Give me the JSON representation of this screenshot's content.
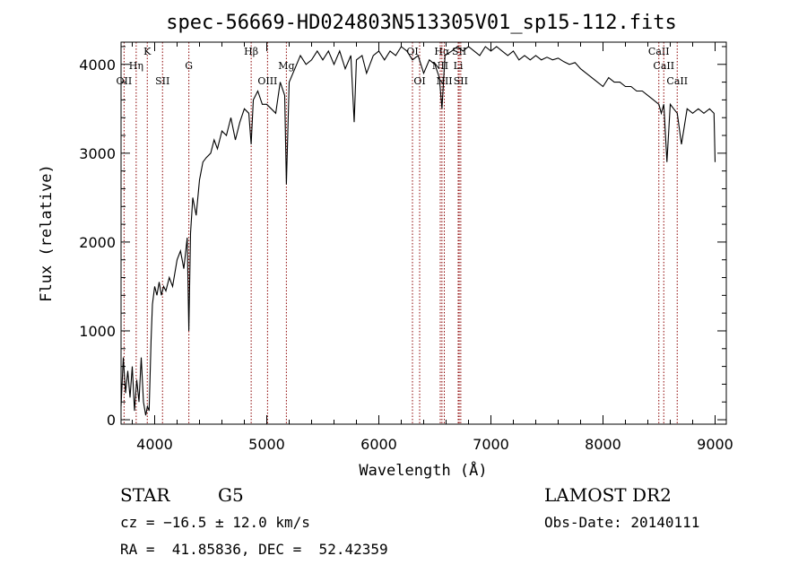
{
  "chart_data": {
    "type": "line",
    "title": "spec-56669-HD024803N513305V01_sp15-112.fits",
    "xlabel": "Wavelength (Å)",
    "ylabel": "Flux (relative)",
    "xlim": [
      3700,
      9100
    ],
    "ylim": [
      -50,
      4250
    ],
    "xticks": [
      4000,
      5000,
      6000,
      7000,
      8000,
      9000
    ],
    "yticks": [
      0,
      1000,
      2000,
      3000,
      4000
    ],
    "grid": false,
    "series": [
      {
        "color": "#000000",
        "x": [
          3700,
          3720,
          3740,
          3760,
          3780,
          3800,
          3820,
          3840,
          3860,
          3880,
          3900,
          3920,
          3935,
          3950,
          3968,
          3980,
          4000,
          4020,
          4040,
          4060,
          4080,
          4100,
          4130,
          4160,
          4200,
          4230,
          4260,
          4290,
          4305,
          4320,
          4340,
          4370,
          4400,
          4430,
          4460,
          4500,
          4530,
          4560,
          4600,
          4640,
          4680,
          4720,
          4760,
          4800,
          4840,
          4861,
          4880,
          4920,
          4960,
          5000,
          5040,
          5080,
          5120,
          5160,
          5175,
          5200,
          5250,
          5300,
          5350,
          5400,
          5450,
          5500,
          5550,
          5600,
          5650,
          5700,
          5750,
          5780,
          5800,
          5850,
          5890,
          5950,
          6000,
          6050,
          6100,
          6150,
          6200,
          6250,
          6300,
          6350,
          6400,
          6450,
          6500,
          6540,
          6563,
          6590,
          6650,
          6700,
          6750,
          6800,
          6850,
          6900,
          6950,
          7000,
          7050,
          7100,
          7150,
          7200,
          7250,
          7300,
          7350,
          7400,
          7450,
          7500,
          7550,
          7600,
          7650,
          7700,
          7750,
          7800,
          7850,
          7900,
          7950,
          8000,
          8050,
          8100,
          8150,
          8200,
          8250,
          8300,
          8350,
          8400,
          8450,
          8498,
          8520,
          8542,
          8570,
          8600,
          8630,
          8662,
          8700,
          8750,
          8800,
          8850,
          8900,
          8950,
          8990,
          9000
        ],
        "y": [
          150,
          700,
          300,
          550,
          250,
          600,
          100,
          450,
          200,
          700,
          200,
          50,
          150,
          100,
          900,
          1300,
          1500,
          1400,
          1550,
          1400,
          1500,
          1450,
          1600,
          1500,
          1800,
          1900,
          1700,
          2050,
          1000,
          2100,
          2500,
          2300,
          2700,
          2900,
          2950,
          3000,
          3150,
          3050,
          3250,
          3200,
          3400,
          3150,
          3350,
          3500,
          3450,
          3100,
          3600,
          3700,
          3550,
          3550,
          3500,
          3450,
          3800,
          3650,
          2650,
          3800,
          3950,
          4100,
          4000,
          4050,
          4150,
          4050,
          4150,
          4000,
          4150,
          3950,
          4100,
          3350,
          4050,
          4100,
          3900,
          4100,
          4150,
          4050,
          4150,
          4100,
          4200,
          4150,
          4050,
          4100,
          3900,
          4050,
          4000,
          3850,
          3500,
          4100,
          4150,
          4200,
          4150,
          4200,
          4150,
          4100,
          4200,
          4150,
          4200,
          4150,
          4100,
          4150,
          4050,
          4100,
          4050,
          4100,
          4050,
          4080,
          4050,
          4070,
          4030,
          4000,
          4020,
          3950,
          3900,
          3850,
          3800,
          3750,
          3850,
          3800,
          3800,
          3750,
          3750,
          3700,
          3700,
          3650,
          3600,
          3550,
          3450,
          3550,
          2900,
          3550,
          3500,
          3450,
          3100,
          3500,
          3450,
          3500,
          3450,
          3500,
          3450,
          2900
        ]
      }
    ],
    "lines": [
      {
        "label": "OII",
        "x": 3727,
        "row": 3,
        "color": "#8b0000"
      },
      {
        "label": "Hη",
        "x": 3835,
        "row": 2,
        "color": "#8b0000"
      },
      {
        "label": "K",
        "x": 3934,
        "row": 1,
        "color": "#8b0000"
      },
      {
        "label": "SII",
        "x": 4070,
        "row": 3,
        "color": "#8b0000"
      },
      {
        "label": "G",
        "x": 4305,
        "row": 2,
        "color": "#8b0000"
      },
      {
        "label": "Hβ",
        "x": 4861,
        "row": 1,
        "color": "#8b0000"
      },
      {
        "label": "OIII",
        "x": 5007,
        "row": 3,
        "color": "#8b0000"
      },
      {
        "label": "Mg",
        "x": 5175,
        "row": 2,
        "color": "#8b0000"
      },
      {
        "label": "OI",
        "x": 6300,
        "row": 1,
        "color": "#8b0000"
      },
      {
        "label": "OI",
        "x": 6364,
        "row": 3,
        "color": "#8b0000"
      },
      {
        "label": "Hα",
        "x": 6563,
        "row": 1,
        "color": "#8b0000"
      },
      {
        "label": "NII",
        "x": 6548,
        "row": 2,
        "color": "#8b0000"
      },
      {
        "label": "NII",
        "x": 6584,
        "row": 3,
        "color": "#8b0000"
      },
      {
        "label": "SII",
        "x": 6717,
        "row": 1,
        "color": "#8b0000"
      },
      {
        "label": "Li",
        "x": 6708,
        "row": 2,
        "color": "#8b0000"
      },
      {
        "label": "SII",
        "x": 6731,
        "row": 3,
        "color": "#8b0000"
      },
      {
        "label": "CaII",
        "x": 8498,
        "row": 1,
        "color": "#8b0000"
      },
      {
        "label": "CaII",
        "x": 8542,
        "row": 2,
        "color": "#8b0000"
      },
      {
        "label": "CaII",
        "x": 8662,
        "row": 3,
        "color": "#8b0000"
      }
    ]
  },
  "info": {
    "class": "STAR",
    "subclass": "G5",
    "survey": "LAMOST DR2",
    "redshift": "cz = −16.5 ± 12.0 km/s",
    "obs_date": "Obs-Date: 20140111",
    "coords": "RA =  41.85836, DEC =  52.42359"
  }
}
